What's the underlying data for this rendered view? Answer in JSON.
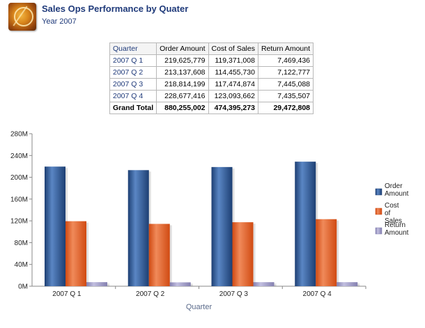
{
  "header": {
    "title": "Sales Ops Performance by Quater",
    "subtitle": "Year 2007"
  },
  "table": {
    "columns": [
      "Quarter",
      "Order Amount",
      "Cost of Sales",
      "Return Amount"
    ],
    "rows": [
      {
        "quarter": "2007 Q 1",
        "order_amount": "219,625,779",
        "cost_of_sales": "119,371,008",
        "return_amount": "7,469,436"
      },
      {
        "quarter": "2007 Q 2",
        "order_amount": "213,137,608",
        "cost_of_sales": "114,455,730",
        "return_amount": "7,122,777"
      },
      {
        "quarter": "2007 Q 3",
        "order_amount": "218,814,199",
        "cost_of_sales": "117,474,874",
        "return_amount": "7,445,088"
      },
      {
        "quarter": "2007 Q 4",
        "order_amount": "228,677,416",
        "cost_of_sales": "123,093,662",
        "return_amount": "7,435,507"
      }
    ],
    "total": {
      "label": "Grand Total",
      "order_amount": "880,255,002",
      "cost_of_sales": "474,395,273",
      "return_amount": "29,472,808"
    }
  },
  "chart_data": {
    "type": "bar",
    "categories": [
      "2007 Q 1",
      "2007 Q 2",
      "2007 Q 3",
      "2007 Q 4"
    ],
    "series": [
      {
        "name": "Order Amount",
        "values": [
          219625779,
          213137608,
          218814199,
          228677416
        ],
        "color": "#1d3f73"
      },
      {
        "name": "Cost of Sales",
        "values": [
          119371008,
          114455730,
          117474874,
          123093662
        ],
        "color": "#d04a12"
      },
      {
        "name": "Return Amount",
        "values": [
          7469436,
          7122777,
          7445088,
          7435507
        ],
        "color": "#8480b0"
      }
    ],
    "xlabel": "Quarter",
    "ylabel": "",
    "ylim": [
      0,
      280000000
    ],
    "yticks": [
      0,
      40000000,
      80000000,
      120000000,
      160000000,
      200000000,
      240000000,
      280000000
    ],
    "ytick_labels": [
      "0M",
      "40M",
      "80M",
      "120M",
      "160M",
      "200M",
      "240M",
      "280M"
    ],
    "legend_position": "right",
    "grid": false
  }
}
